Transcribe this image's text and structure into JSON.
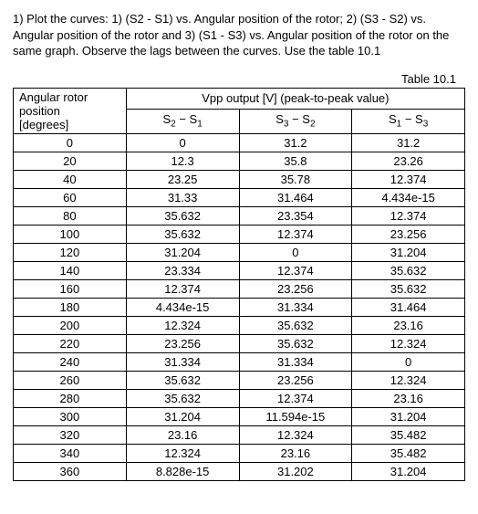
{
  "instructions": "1) Plot the curves: 1) (S2 - S1) vs. Angular position of the rotor; 2) (S3 - S2) vs. Angular position of the rotor and 3) (S1 - S3) vs. Angular position of the rotor on the same graph. Observe the lags between the curves. Use the table 10.1",
  "table_caption": "Table 10.1",
  "headers": {
    "angular_l1": "Angular rotor",
    "angular_l2": "position",
    "angular_l3": "[degrees]",
    "vpp": "Vpp output [V] (peak-to-peak value)",
    "c1a": "S",
    "c1b": "2",
    "c1c": " − S",
    "c1d": "1",
    "c2a": "S",
    "c2b": "3",
    "c2c": " − S",
    "c2d": "2",
    "c3a": "S",
    "c3b": "1",
    "c3c": " − S",
    "c3d": "3"
  },
  "rows": [
    [
      "0",
      "0",
      "31.2",
      "31.2"
    ],
    [
      "20",
      "12.3",
      "35.8",
      "23.26"
    ],
    [
      "40",
      "23.25",
      "35.78",
      "12.374"
    ],
    [
      "60",
      "31.33",
      "31.464",
      "4.434e-15"
    ],
    [
      "80",
      "35.632",
      "23.354",
      "12.374"
    ],
    [
      "100",
      "35.632",
      "12.374",
      "23.256"
    ],
    [
      "120",
      "31.204",
      "0",
      "31.204"
    ],
    [
      "140",
      "23.334",
      "12.374",
      "35.632"
    ],
    [
      "160",
      "12.374",
      "23.256",
      "35.632"
    ],
    [
      "180",
      "4.434e-15",
      "31.334",
      "31.464"
    ],
    [
      "200",
      "12.324",
      "35.632",
      "23.16"
    ],
    [
      "220",
      "23.256",
      "35.632",
      "12.324"
    ],
    [
      "240",
      "31.334",
      "31.334",
      "0"
    ],
    [
      "260",
      "35.632",
      "23.256",
      "12.324"
    ],
    [
      "280",
      "35.632",
      "12.374",
      "23.16"
    ],
    [
      "300",
      "31.204",
      "11.594e-15",
      "31.204"
    ],
    [
      "320",
      "23.16",
      "12.324",
      "35.482"
    ],
    [
      "340",
      "12.324",
      "23.16",
      "35.482"
    ],
    [
      "360",
      "8.828e-15",
      "31.202",
      "31.204"
    ]
  ]
}
